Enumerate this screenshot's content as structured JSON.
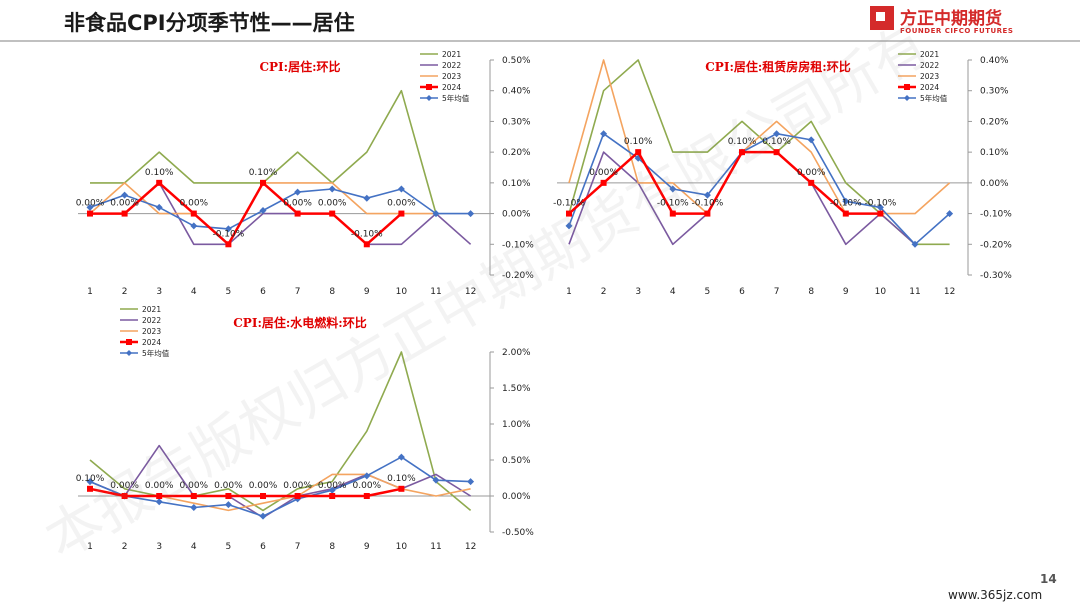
{
  "page": {
    "title": "非食品CPI分项季节性——居住",
    "logo_cn": "方正中期期货",
    "logo_en": "FOUNDER CIFCO FUTURES",
    "page_number": "14",
    "site": "www.365jz.com",
    "watermark": "本报告版权归方正中期期货有限公司所有"
  },
  "colors": {
    "2021": "#8faa4f",
    "2022": "#7b5aa0",
    "2023": "#f4a460",
    "2024": "#ff0000",
    "avg": "#4472c4"
  },
  "chart_data": [
    {
      "type": "line",
      "title": "CPI:居住:环比",
      "categories": [
        "1",
        "2",
        "3",
        "4",
        "5",
        "6",
        "7",
        "8",
        "9",
        "10",
        "11",
        "12"
      ],
      "ylim": [
        -0.2,
        0.5
      ],
      "yticks": [
        "0.50%",
        "0.40%",
        "0.30%",
        "0.20%",
        "0.10%",
        "0.00%",
        "-0.10%",
        "-0.20%"
      ],
      "legend_position": "top-right",
      "series": [
        {
          "name": "2021",
          "key": "2021",
          "values": [
            0.1,
            0.1,
            0.2,
            0.1,
            0.1,
            0.1,
            0.2,
            0.1,
            0.2,
            0.4,
            0.0,
            null
          ]
        },
        {
          "name": "2022",
          "key": "2022",
          "values": [
            0.0,
            0.0,
            0.1,
            -0.1,
            -0.1,
            0.0,
            0.0,
            0.0,
            -0.1,
            -0.1,
            0.0,
            -0.1
          ]
        },
        {
          "name": "2023",
          "key": "2023",
          "values": [
            0.0,
            0.1,
            0.0,
            0.0,
            -0.1,
            0.1,
            0.1,
            0.1,
            0.0,
            0.0,
            0.0,
            null
          ]
        },
        {
          "name": "2024",
          "key": "2024",
          "values": [
            0.0,
            0.0,
            0.1,
            0.0,
            -0.1,
            0.1,
            0.0,
            0.0,
            -0.1,
            0.0,
            null,
            null
          ]
        },
        {
          "name": "5年均值",
          "key": "avg",
          "values": [
            0.02,
            0.06,
            0.02,
            -0.04,
            -0.05,
            0.01,
            0.07,
            0.08,
            0.05,
            0.08,
            0.0,
            0.0
          ]
        }
      ],
      "labels": [
        "0.00%",
        "0.00%",
        "0.10%",
        "0.00%",
        "-0.10%",
        "0.10%",
        "0.00%",
        "0.00%",
        "-0.10%",
        "0.00%"
      ]
    },
    {
      "type": "line",
      "title": "CPI:居住:租赁房房租:环比",
      "categories": [
        "1",
        "2",
        "3",
        "4",
        "5",
        "6",
        "7",
        "8",
        "9",
        "10",
        "11",
        "12"
      ],
      "ylim": [
        -0.3,
        0.4
      ],
      "yticks": [
        "0.40%",
        "0.30%",
        "0.20%",
        "0.10%",
        "0.00%",
        "-0.10%",
        "-0.20%",
        "-0.30%"
      ],
      "legend_position": "top-right",
      "series": [
        {
          "name": "2021",
          "key": "2021",
          "values": [
            -0.1,
            0.3,
            0.4,
            0.1,
            0.1,
            0.2,
            0.1,
            0.2,
            0.0,
            -0.1,
            -0.2,
            -0.2
          ]
        },
        {
          "name": "2022",
          "key": "2022",
          "values": [
            -0.2,
            0.1,
            0.0,
            -0.2,
            -0.1,
            0.1,
            0.1,
            0.0,
            -0.2,
            -0.1,
            -0.2,
            null
          ]
        },
        {
          "name": "2023",
          "key": "2023",
          "values": [
            0.0,
            0.4,
            0.0,
            0.0,
            -0.1,
            0.1,
            0.2,
            0.1,
            -0.1,
            -0.1,
            -0.1,
            0.0
          ]
        },
        {
          "name": "2024",
          "key": "2024",
          "values": [
            -0.1,
            0.0,
            0.1,
            -0.1,
            -0.1,
            0.1,
            0.1,
            0.0,
            -0.1,
            -0.1,
            null,
            null
          ]
        },
        {
          "name": "5年均值",
          "key": "avg",
          "values": [
            -0.14,
            0.16,
            0.08,
            -0.02,
            -0.04,
            0.1,
            0.16,
            0.14,
            -0.06,
            -0.08,
            -0.2,
            -0.1
          ]
        }
      ],
      "labels": [
        "-0.10%",
        "0.00%",
        "0.10%",
        "-0.10%",
        "-0.10%",
        "0.10%",
        "0.10%",
        "0.00%",
        "-0.10%",
        "-0.10%"
      ]
    },
    {
      "type": "line",
      "title": "CPI:居住:水电燃料:环比",
      "categories": [
        "1",
        "2",
        "3",
        "4",
        "5",
        "6",
        "7",
        "8",
        "9",
        "10",
        "11",
        "12"
      ],
      "ylim": [
        -0.5,
        2.0
      ],
      "yticks": [
        "2.00%",
        "1.50%",
        "1.00%",
        "0.50%",
        "0.00%",
        "-0.50%"
      ],
      "legend_position": "top-left",
      "series": [
        {
          "name": "2021",
          "key": "2021",
          "values": [
            0.5,
            0.1,
            0.0,
            0.0,
            0.1,
            -0.2,
            0.1,
            0.2,
            0.9,
            2.0,
            0.2,
            -0.2
          ]
        },
        {
          "name": "2022",
          "key": "2022",
          "values": [
            0.2,
            0.0,
            0.7,
            0.0,
            0.0,
            -0.3,
            0.0,
            0.1,
            0.3,
            0.1,
            0.3,
            0.0
          ]
        },
        {
          "name": "2023",
          "key": "2023",
          "values": [
            0.1,
            0.0,
            0.0,
            -0.1,
            -0.2,
            -0.1,
            0.0,
            0.3,
            0.3,
            0.1,
            0.0,
            0.1
          ]
        },
        {
          "name": "2024",
          "key": "2024",
          "values": [
            0.1,
            0.0,
            0.0,
            0.0,
            0.0,
            0.0,
            0.0,
            0.0,
            0.0,
            0.1,
            null,
            null
          ]
        },
        {
          "name": "5年均值",
          "key": "avg",
          "values": [
            0.2,
            0.0,
            -0.08,
            -0.16,
            -0.12,
            -0.28,
            -0.04,
            0.08,
            0.28,
            0.54,
            0.22,
            0.2
          ]
        }
      ],
      "labels": [
        "0.10%",
        "0.00%",
        "0.00%",
        "0.00%",
        "0.00%",
        "0.00%",
        "0.00%",
        "0.00%",
        "0.00%",
        "0.10%"
      ]
    }
  ]
}
